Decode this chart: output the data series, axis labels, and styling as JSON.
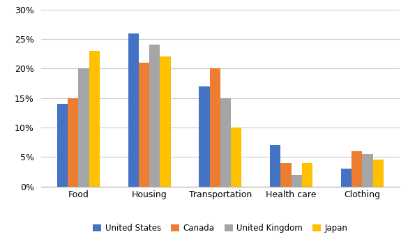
{
  "categories": [
    "Food",
    "Housing",
    "Transportation",
    "Health care",
    "Clothing"
  ],
  "series": [
    {
      "label": "United States",
      "color": "#4472C4",
      "values": [
        0.14,
        0.26,
        0.17,
        0.07,
        0.03
      ]
    },
    {
      "label": "Canada",
      "color": "#ED7D31",
      "values": [
        0.15,
        0.21,
        0.2,
        0.04,
        0.06
      ]
    },
    {
      "label": "United Kingdom",
      "color": "#A5A5A5",
      "values": [
        0.2,
        0.24,
        0.15,
        0.02,
        0.055
      ]
    },
    {
      "label": "Japan",
      "color": "#FFC000",
      "values": [
        0.23,
        0.22,
        0.1,
        0.04,
        0.045
      ]
    }
  ],
  "ylim": [
    0,
    0.3
  ],
  "yticks": [
    0.0,
    0.05,
    0.1,
    0.15,
    0.2,
    0.25,
    0.3
  ],
  "bar_width": 0.15,
  "figsize": [
    5.85,
    3.43
  ],
  "dpi": 100
}
